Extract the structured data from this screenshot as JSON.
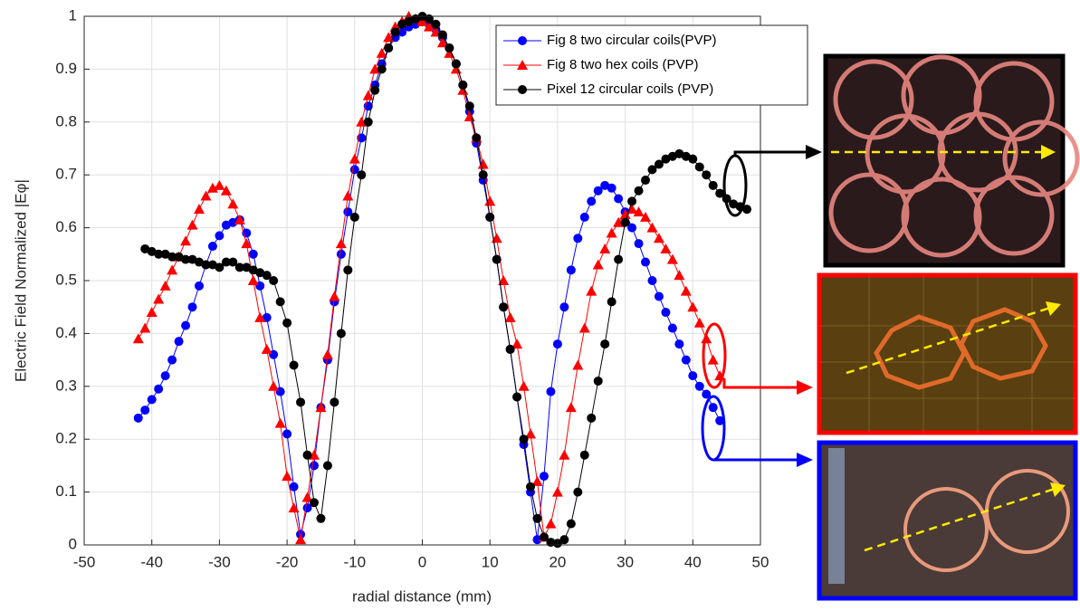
{
  "chart_data": {
    "type": "line",
    "xlabel": "radial distance (mm)",
    "ylabel": "Electric Field Normalized |Eφ|",
    "xlim": [
      -50,
      50
    ],
    "ylim": [
      0,
      1
    ],
    "xticks": [
      -50,
      -40,
      -30,
      -20,
      -10,
      0,
      10,
      20,
      30,
      40,
      50
    ],
    "yticks": [
      0,
      0.1,
      0.2,
      0.3,
      0.4,
      0.5,
      0.6,
      0.7,
      0.8,
      0.9,
      1
    ],
    "grid": true,
    "legend": "top-right",
    "series": [
      {
        "name": "Fig 8 two circular coils(PVP)",
        "color": "#0000ff",
        "marker": "circle",
        "x": [
          -42,
          -41,
          -40,
          -39,
          -38,
          -37,
          -36,
          -35,
          -34,
          -33,
          -32,
          -31,
          -30,
          -29,
          -28,
          -27,
          -26,
          -25,
          -24,
          -23,
          -22,
          -21,
          -20,
          -19,
          -18,
          -17,
          -16,
          -15,
          -14,
          -13,
          -12,
          -11,
          -10,
          -9,
          -8,
          -7,
          -6,
          -5,
          -4,
          -3,
          -2,
          -1,
          0,
          1,
          2,
          3,
          4,
          5,
          6,
          7,
          8,
          9,
          10,
          11,
          12,
          13,
          14,
          15,
          16,
          17,
          18,
          19,
          20,
          21,
          22,
          23,
          24,
          25,
          26,
          27,
          28,
          29,
          30,
          31,
          32,
          33,
          34,
          35,
          36,
          37,
          38,
          39,
          40,
          41,
          42,
          43,
          44
        ],
        "values": [
          0.24,
          0.255,
          0.275,
          0.295,
          0.32,
          0.35,
          0.385,
          0.415,
          0.45,
          0.49,
          0.53,
          0.565,
          0.585,
          0.605,
          0.61,
          0.615,
          0.59,
          0.55,
          0.49,
          0.43,
          0.36,
          0.29,
          0.21,
          0.11,
          0.02,
          0.07,
          0.15,
          0.26,
          0.35,
          0.46,
          0.55,
          0.63,
          0.71,
          0.77,
          0.83,
          0.87,
          0.91,
          0.94,
          0.96,
          0.97,
          0.98,
          0.985,
          0.99,
          0.985,
          0.975,
          0.96,
          0.94,
          0.91,
          0.87,
          0.82,
          0.76,
          0.69,
          0.62,
          0.54,
          0.45,
          0.37,
          0.28,
          0.19,
          0.1,
          0.01,
          0.13,
          0.29,
          0.38,
          0.45,
          0.52,
          0.58,
          0.62,
          0.65,
          0.67,
          0.68,
          0.675,
          0.655,
          0.63,
          0.6,
          0.57,
          0.535,
          0.5,
          0.47,
          0.44,
          0.41,
          0.38,
          0.35,
          0.32,
          0.3,
          0.285,
          0.26,
          0.235
        ]
      },
      {
        "name": "Fig 8 two hex coils (PVP)",
        "color": "#ff0000",
        "marker": "triangle",
        "x": [
          -42,
          -41,
          -40,
          -39,
          -38,
          -37,
          -36,
          -35,
          -34,
          -33,
          -32,
          -31,
          -30,
          -29,
          -28,
          -27,
          -26,
          -25,
          -24,
          -23,
          -22,
          -21,
          -20,
          -19,
          -18,
          -17,
          -16,
          -15,
          -14,
          -13,
          -12,
          -11,
          -10,
          -9,
          -8,
          -7,
          -6,
          -5,
          -4,
          -3,
          -2,
          -1,
          0,
          1,
          2,
          3,
          4,
          5,
          6,
          7,
          8,
          9,
          10,
          11,
          12,
          13,
          14,
          15,
          16,
          17,
          18,
          19,
          20,
          21,
          22,
          23,
          24,
          25,
          26,
          27,
          28,
          29,
          30,
          31,
          32,
          33,
          34,
          35,
          36,
          37,
          38,
          39,
          40,
          41,
          42,
          43,
          44
        ],
        "values": [
          0.39,
          0.41,
          0.44,
          0.465,
          0.49,
          0.52,
          0.545,
          0.575,
          0.605,
          0.635,
          0.66,
          0.675,
          0.68,
          0.67,
          0.645,
          0.615,
          0.57,
          0.5,
          0.43,
          0.37,
          0.3,
          0.23,
          0.13,
          0.07,
          0.01,
          0.09,
          0.17,
          0.26,
          0.36,
          0.47,
          0.57,
          0.66,
          0.73,
          0.8,
          0.85,
          0.9,
          0.93,
          0.96,
          0.98,
          0.99,
          1.0,
          0.995,
          0.99,
          0.98,
          0.97,
          0.95,
          0.93,
          0.9,
          0.86,
          0.81,
          0.77,
          0.72,
          0.65,
          0.58,
          0.5,
          0.43,
          0.38,
          0.3,
          0.21,
          0.12,
          0.015,
          0.04,
          0.1,
          0.17,
          0.26,
          0.34,
          0.41,
          0.48,
          0.53,
          0.56,
          0.59,
          0.61,
          0.625,
          0.635,
          0.63,
          0.62,
          0.6,
          0.58,
          0.56,
          0.54,
          0.51,
          0.48,
          0.45,
          0.42,
          0.39,
          0.35,
          0.32
        ]
      },
      {
        "name": "Pixel 12 circular coils (PVP)",
        "color": "#000000",
        "marker": "circle",
        "x": [
          -41,
          -40,
          -39,
          -38,
          -37,
          -36,
          -35,
          -34,
          -33,
          -32,
          -31,
          -30,
          -29,
          -28,
          -27,
          -26,
          -25,
          -24,
          -23,
          -22,
          -21,
          -20,
          -19,
          -18,
          -17,
          -16,
          -15,
          -14,
          -13,
          -12,
          -11,
          -10,
          -9,
          -8,
          -7,
          -6,
          -5,
          -4,
          -3,
          -2,
          -1,
          0,
          1,
          2,
          3,
          4,
          5,
          6,
          7,
          8,
          9,
          10,
          11,
          12,
          13,
          14,
          15,
          16,
          17,
          18,
          19,
          20,
          21,
          22,
          23,
          24,
          25,
          26,
          27,
          28,
          29,
          30,
          31,
          32,
          33,
          34,
          35,
          36,
          37,
          38,
          39,
          40,
          41,
          42,
          43,
          44,
          45,
          46,
          47,
          48
        ],
        "values": [
          0.56,
          0.555,
          0.55,
          0.55,
          0.545,
          0.545,
          0.54,
          0.54,
          0.535,
          0.53,
          0.53,
          0.525,
          0.535,
          0.535,
          0.525,
          0.525,
          0.52,
          0.515,
          0.51,
          0.5,
          0.46,
          0.42,
          0.34,
          0.27,
          0.17,
          0.08,
          0.05,
          0.15,
          0.27,
          0.4,
          0.52,
          0.62,
          0.7,
          0.8,
          0.86,
          0.9,
          0.94,
          0.97,
          0.985,
          0.99,
          0.995,
          1.0,
          0.995,
          0.985,
          0.965,
          0.94,
          0.91,
          0.87,
          0.83,
          0.77,
          0.7,
          0.62,
          0.54,
          0.45,
          0.37,
          0.28,
          0.2,
          0.11,
          0.05,
          0.015,
          0.005,
          0.003,
          0.01,
          0.04,
          0.1,
          0.17,
          0.24,
          0.31,
          0.38,
          0.46,
          0.54,
          0.61,
          0.65,
          0.67,
          0.69,
          0.71,
          0.72,
          0.73,
          0.735,
          0.74,
          0.735,
          0.73,
          0.715,
          0.7,
          0.68,
          0.665,
          0.655,
          0.645,
          0.64,
          0.635
        ]
      }
    ]
  }
}
